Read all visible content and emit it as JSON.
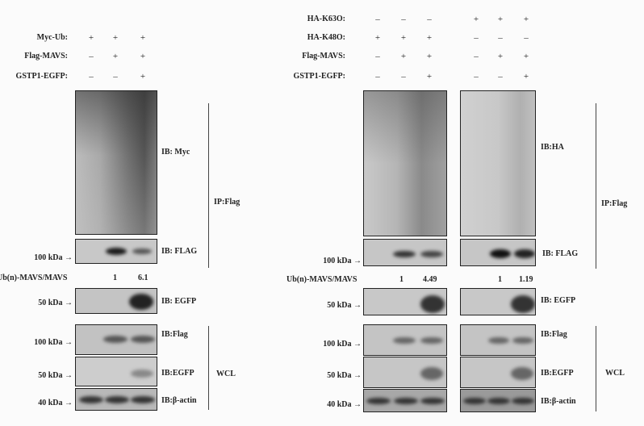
{
  "left_panel": {
    "conditions": [
      {
        "label": "Myc-Ub:",
        "values": [
          "+",
          "+",
          "+"
        ]
      },
      {
        "label": "Flag-MAVS:",
        "values": [
          "–",
          "+",
          "+"
        ]
      },
      {
        "label": "GSTP1-EGFP:",
        "values": [
          "–",
          "–",
          "+"
        ]
      }
    ],
    "ip_blots": {
      "myc": "IB: Myc",
      "flag": "IB: FLAG",
      "egfp": "IB: EGFP",
      "group": "IP:Flag"
    },
    "ratio": {
      "label": "Ub(n)-MAVS/MAVS",
      "values": [
        "1",
        "6.1"
      ]
    },
    "wcl_blots": {
      "flag": "IB:Flag",
      "egfp": "IB:EGFP",
      "actin": "IB:β-actin",
      "group": "WCL"
    },
    "markers": {
      "kda100": "100 kDa",
      "kda50": "50 kDa",
      "kda40": "40 kDa"
    }
  },
  "right_panel": {
    "conditions": [
      {
        "label": "HA-K63O:",
        "values": [
          "–",
          "–",
          "–",
          "+",
          "+",
          "+"
        ]
      },
      {
        "label": "HA-K48O:",
        "values": [
          "+",
          "+",
          "+",
          "–",
          "–",
          "–"
        ]
      },
      {
        "label": "Flag-MAVS:",
        "values": [
          "–",
          "+",
          "+",
          "–",
          "+",
          "+"
        ]
      },
      {
        "label": "GSTP1-EGFP:",
        "values": [
          "–",
          "–",
          "+",
          "–",
          "–",
          "+"
        ]
      }
    ],
    "ip_blots": {
      "ha": "IB:HA",
      "flag": "IB: FLAG",
      "egfp": "IB: EGFP",
      "group": "IP:Flag"
    },
    "ratio": {
      "label": "Ub(n)-MAVS/MAVS",
      "values": [
        "1",
        "4.49",
        "1",
        "1.19"
      ]
    },
    "wcl_blots": {
      "flag": "IB:Flag",
      "egfp": "IB:EGFP",
      "actin": "IB:β-actin",
      "group": "WCL"
    },
    "markers": {
      "kda100": "100 kDa",
      "kda50": "50 kDa",
      "kda40": "40 kDa"
    }
  },
  "arrow": "→"
}
